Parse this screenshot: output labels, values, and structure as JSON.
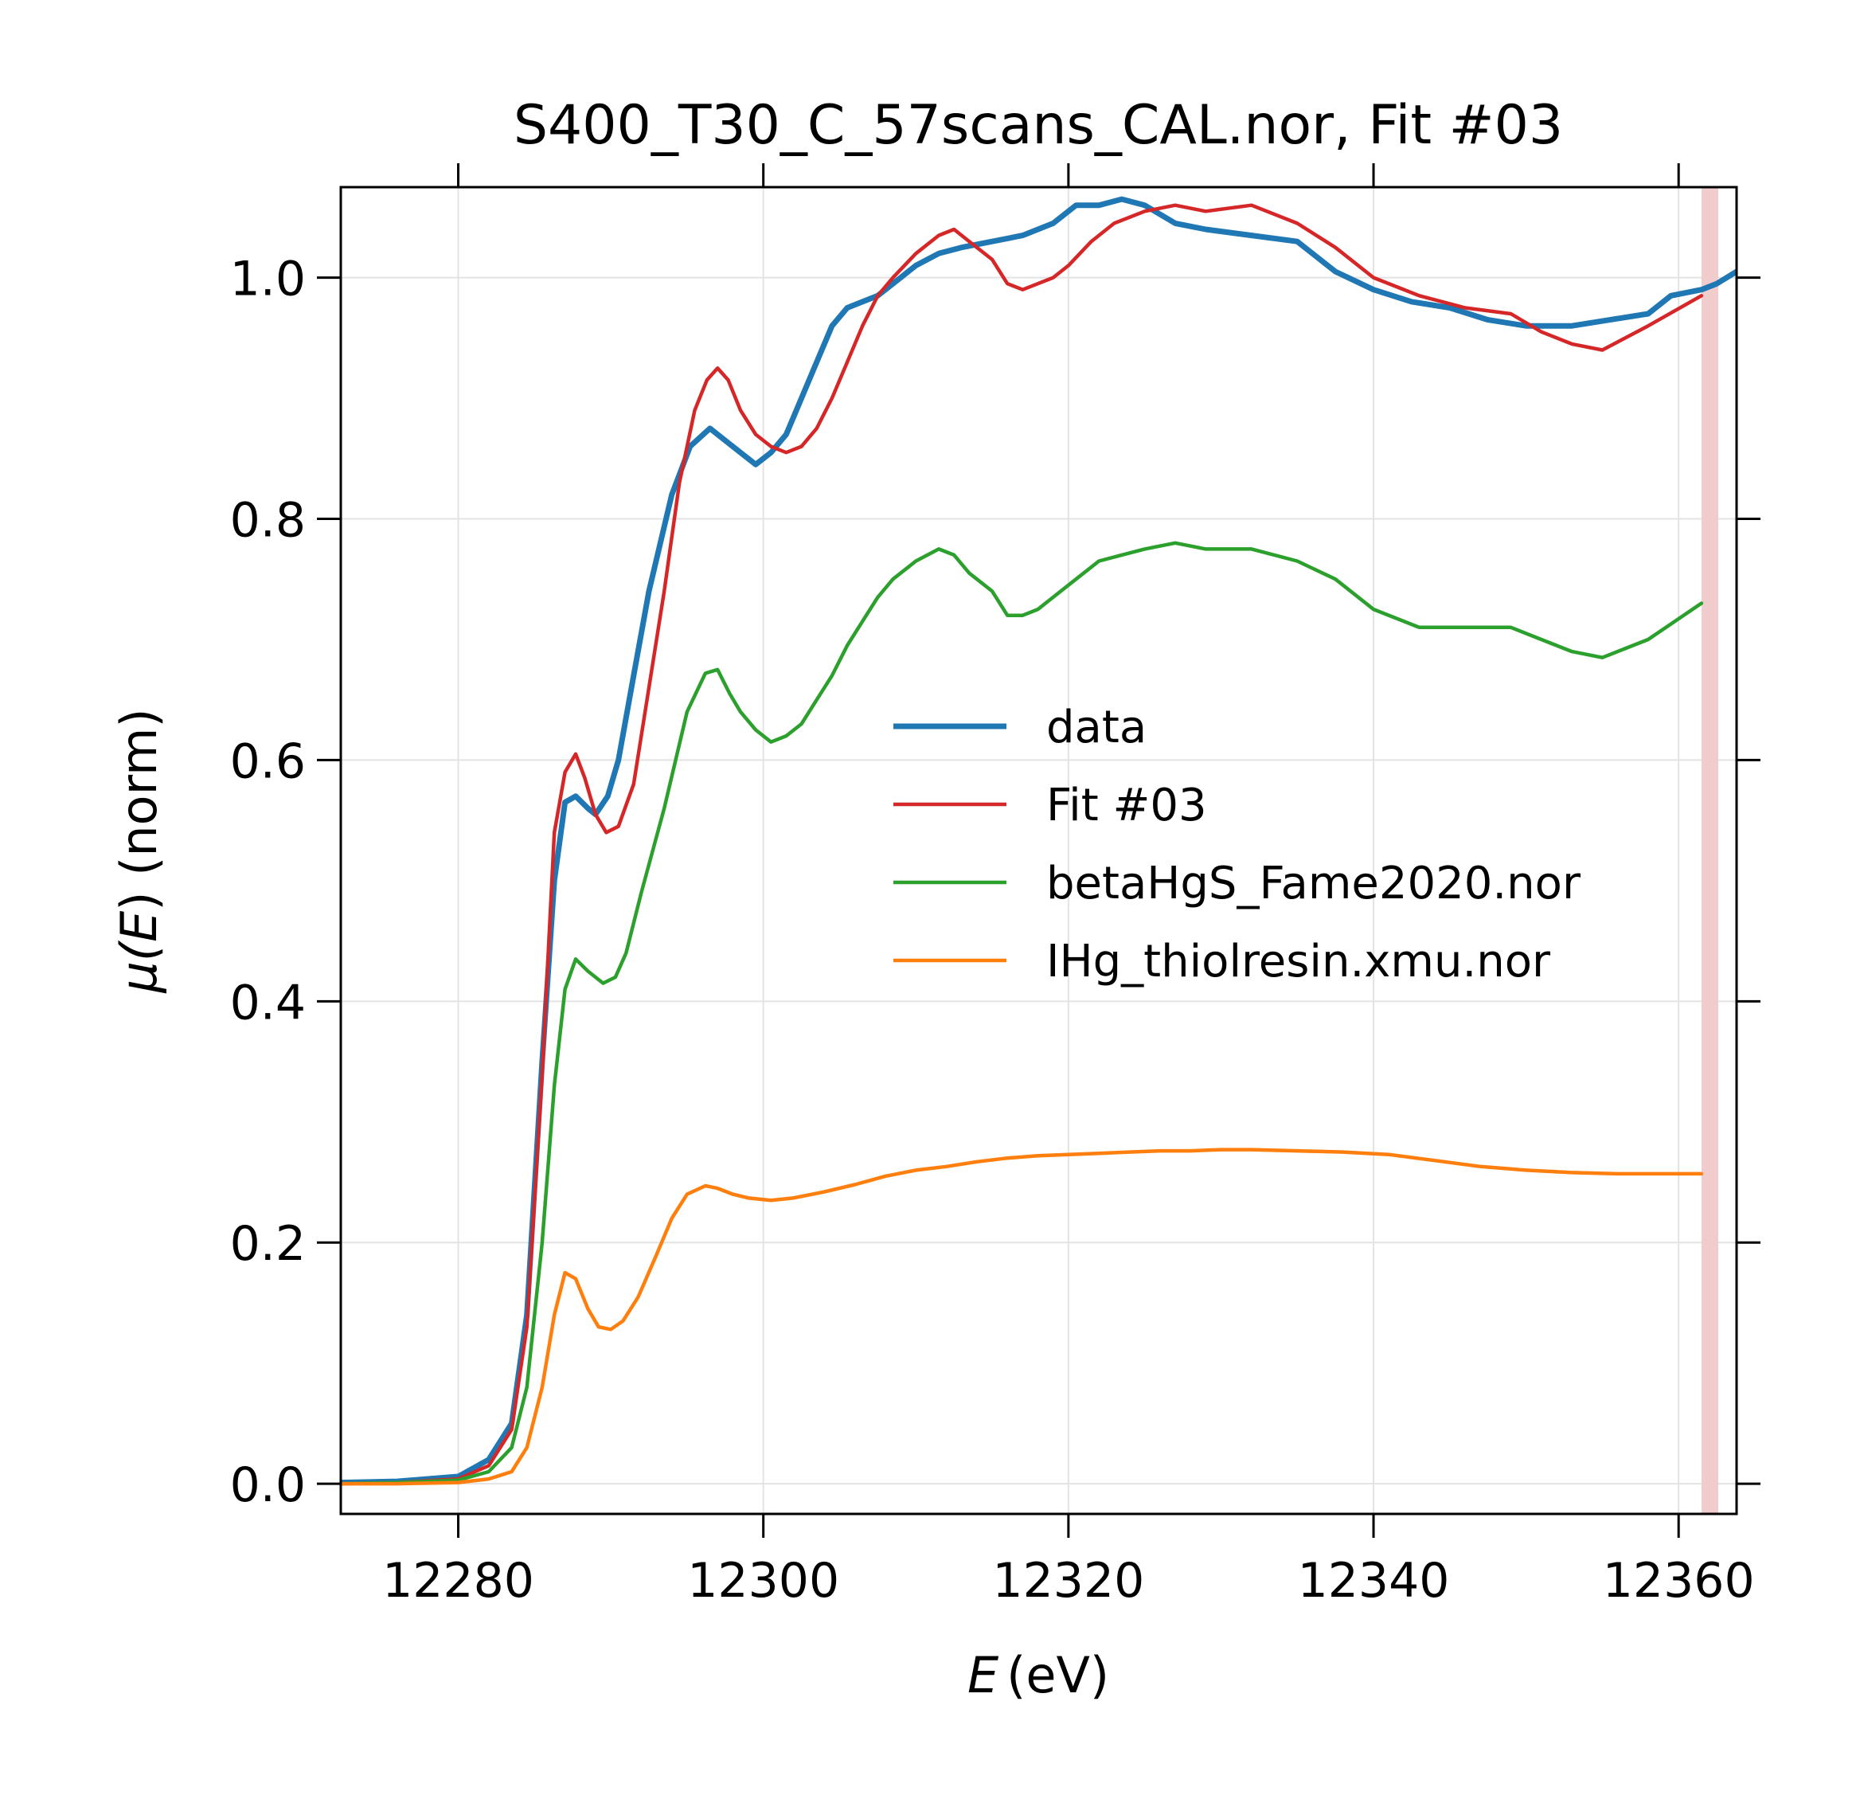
{
  "chart_data": {
    "type": "line",
    "title": "S400_T30_C_57scans_CAL.nor, Fit #03",
    "xlabel_italic": "E",
    "xlabel_unit": "(eV)",
    "ylabel_symbol": "μ(",
    "ylabel_var": "E",
    "ylabel_rest": ") (norm)",
    "xlim": [
      12272.3,
      12363.8
    ],
    "ylim": [
      -0.025,
      1.075
    ],
    "xticks": [
      12280,
      12300,
      12320,
      12340,
      12360
    ],
    "xtick_labels": [
      "12280",
      "12300",
      "12320",
      "12340",
      "12360"
    ],
    "yticks": [
      0.0,
      0.2,
      0.4,
      0.6,
      0.8,
      1.0
    ],
    "ytick_labels": [
      "0.0",
      "0.2",
      "0.4",
      "0.6",
      "0.8",
      "1.0"
    ],
    "grid": true,
    "legend_position": "center-right",
    "highlight_band": {
      "x_from": 12361.5,
      "x_to": 12362.6,
      "color": "#f0cccc"
    },
    "series": [
      {
        "name": "data",
        "color": "#1f77b4",
        "x": [
          12272.3,
          12276,
          12280,
          12282,
          12283.5,
          12284.5,
          12285.5,
          12286.3,
          12287,
          12287.7,
          12288.5,
          12289,
          12289.8,
          12290.5,
          12291.5,
          12292.5,
          12294,
          12295.2,
          12296.5,
          12297.5,
          12298.5,
          12299.5,
          12300.5,
          12301.5,
          12302.5,
          12303.5,
          12304.5,
          12305.5,
          12306.5,
          12307.5,
          12308.5,
          12310,
          12311.5,
          12313,
          12315,
          12317,
          12319,
          12320.5,
          12322,
          12323.5,
          12325,
          12327,
          12329,
          12332,
          12335,
          12337.5,
          12340,
          12342.5,
          12345,
          12347.5,
          12350,
          12353,
          12355.5,
          12358,
          12359.5,
          12361.5,
          12362.5,
          12363.8
        ],
        "y": [
          0.001,
          0.002,
          0.006,
          0.02,
          0.05,
          0.14,
          0.35,
          0.5,
          0.565,
          0.57,
          0.56,
          0.555,
          0.57,
          0.6,
          0.67,
          0.74,
          0.82,
          0.86,
          0.875,
          0.865,
          0.855,
          0.845,
          0.855,
          0.87,
          0.9,
          0.93,
          0.96,
          0.975,
          0.98,
          0.985,
          0.995,
          1.01,
          1.02,
          1.025,
          1.03,
          1.035,
          1.045,
          1.06,
          1.06,
          1.065,
          1.06,
          1.045,
          1.04,
          1.035,
          1.03,
          1.005,
          0.99,
          0.98,
          0.975,
          0.965,
          0.96,
          0.96,
          0.965,
          0.97,
          0.985,
          0.99,
          0.995,
          1.005
        ]
      },
      {
        "name": "Fit #03",
        "color": "#d62728",
        "x": [
          12272.3,
          12276,
          12280,
          12282,
          12283.5,
          12284.5,
          12285.5,
          12286.3,
          12287,
          12287.7,
          12288.3,
          12289,
          12289.7,
          12290.5,
          12291.5,
          12292.5,
          12293.5,
          12294.5,
          12295.5,
          12296.3,
          12297,
          12297.7,
          12298.5,
          12299.5,
          12300.5,
          12301.5,
          12302.5,
          12303.5,
          12304.5,
          12305.5,
          12306.5,
          12307.5,
          12308.5,
          12310,
          12311.5,
          12312.5,
          12313.5,
          12315,
          12316,
          12317,
          12318,
          12319,
          12320,
          12321.5,
          12323,
          12325,
          12327,
          12329,
          12332,
          12335,
          12337.5,
          12340,
          12343,
          12346,
          12349,
          12351,
          12353,
          12355,
          12358,
          12361.5
        ],
        "y": [
          0.0,
          0.001,
          0.004,
          0.015,
          0.045,
          0.13,
          0.34,
          0.54,
          0.59,
          0.605,
          0.585,
          0.555,
          0.54,
          0.545,
          0.58,
          0.66,
          0.74,
          0.83,
          0.89,
          0.915,
          0.925,
          0.915,
          0.89,
          0.87,
          0.86,
          0.855,
          0.86,
          0.875,
          0.9,
          0.93,
          0.96,
          0.985,
          1.0,
          1.02,
          1.035,
          1.04,
          1.03,
          1.015,
          0.995,
          0.99,
          0.995,
          1.0,
          1.01,
          1.03,
          1.045,
          1.055,
          1.06,
          1.055,
          1.06,
          1.045,
          1.025,
          1.0,
          0.985,
          0.975,
          0.97,
          0.955,
          0.945,
          0.94,
          0.96,
          0.985
        ]
      },
      {
        "name": "betaHgS_Fame2020.nor",
        "color": "#2ca02c",
        "x": [
          12272.3,
          12276,
          12280,
          12282,
          12283.5,
          12284.5,
          12285.5,
          12286.3,
          12287,
          12287.7,
          12288.5,
          12289.5,
          12290.3,
          12291,
          12292,
          12293.5,
          12295,
          12296.2,
          12297,
          12297.8,
          12298.5,
          12299.5,
          12300.5,
          12301.5,
          12302.5,
          12303.5,
          12304.5,
          12305.5,
          12306.5,
          12307.5,
          12308.5,
          12310,
          12311.5,
          12312.5,
          12313.5,
          12315,
          12316,
          12317,
          12318,
          12319,
          12320.5,
          12322,
          12323.5,
          12325,
          12327,
          12329,
          12332,
          12335,
          12337.5,
          12340,
          12343,
          12346,
          12349,
          12351,
          12353,
          12355,
          12358,
          12361.5
        ],
        "y": [
          0.0,
          0.001,
          0.003,
          0.01,
          0.03,
          0.08,
          0.2,
          0.33,
          0.41,
          0.435,
          0.425,
          0.415,
          0.42,
          0.44,
          0.49,
          0.56,
          0.64,
          0.672,
          0.675,
          0.655,
          0.64,
          0.625,
          0.615,
          0.62,
          0.63,
          0.65,
          0.67,
          0.695,
          0.715,
          0.735,
          0.75,
          0.765,
          0.775,
          0.77,
          0.755,
          0.74,
          0.72,
          0.72,
          0.725,
          0.735,
          0.75,
          0.765,
          0.77,
          0.775,
          0.78,
          0.775,
          0.775,
          0.765,
          0.75,
          0.725,
          0.71,
          0.71,
          0.71,
          0.7,
          0.69,
          0.685,
          0.7,
          0.73
        ]
      },
      {
        "name": "IHg_thiolresin.xmu.nor",
        "color": "#ff7f0e",
        "x": [
          12272.3,
          12276,
          12280,
          12282,
          12283.5,
          12284.5,
          12285.5,
          12286.3,
          12287,
          12287.7,
          12288.5,
          12289.2,
          12290,
          12290.8,
          12291.8,
          12293,
          12294,
          12295,
          12296.2,
          12297,
          12298,
          12299,
          12300.5,
          12302,
          12304,
          12306,
          12308,
          12310,
          12312,
          12314,
          12316,
          12318,
          12320,
          12322,
          12324,
          12326,
          12328,
          12330,
          12332,
          12335,
          12338,
          12341,
          12344,
          12347,
          12350,
          12353,
          12356,
          12359,
          12361.5
        ],
        "y": [
          0.0,
          0.0,
          0.001,
          0.004,
          0.01,
          0.03,
          0.08,
          0.14,
          0.175,
          0.17,
          0.145,
          0.13,
          0.128,
          0.135,
          0.155,
          0.19,
          0.22,
          0.24,
          0.247,
          0.245,
          0.24,
          0.237,
          0.235,
          0.237,
          0.242,
          0.248,
          0.255,
          0.26,
          0.263,
          0.267,
          0.27,
          0.272,
          0.273,
          0.274,
          0.275,
          0.276,
          0.276,
          0.277,
          0.277,
          0.276,
          0.275,
          0.273,
          0.268,
          0.263,
          0.26,
          0.258,
          0.257,
          0.257,
          0.257
        ]
      }
    ]
  }
}
